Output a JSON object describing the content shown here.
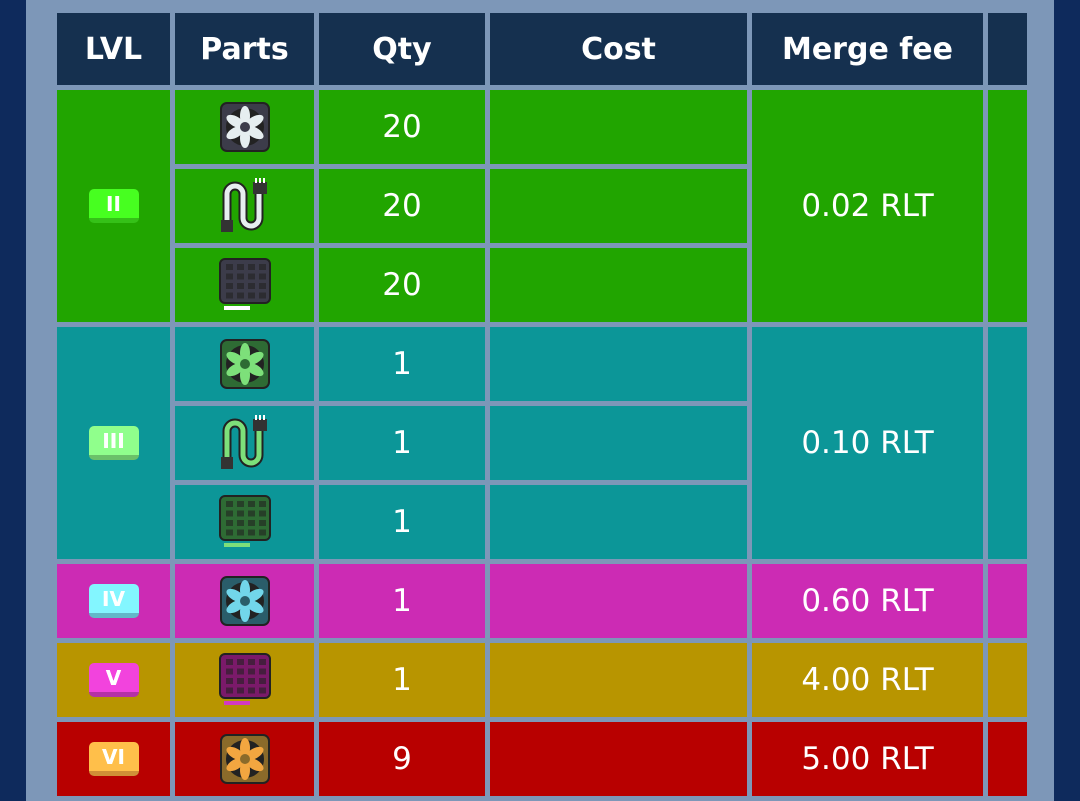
{
  "table": {
    "header": [
      "LVL",
      "Parts",
      "Qty",
      "Cost",
      "Merge fee"
    ],
    "groups": [
      {
        "level": "II",
        "color": "#21a500",
        "qty": [
          20,
          20,
          20
        ],
        "merge_fee": "0.02 RLT"
      },
      {
        "level": "III",
        "color": "#0c9698",
        "qty": [
          1,
          1,
          1
        ],
        "merge_fee": "0.10 RLT"
      },
      {
        "level": "IV",
        "color": "#cc2bb4",
        "qty": [
          1
        ],
        "merge_fee": "0.60 RLT"
      },
      {
        "level": "V",
        "color": "#b89500",
        "qty": [
          1
        ],
        "merge_fee": "4.00 RLT"
      },
      {
        "level": "VI",
        "color": "#b80000",
        "qty": [
          9
        ],
        "merge_fee": "5.00 RLT"
      }
    ]
  }
}
